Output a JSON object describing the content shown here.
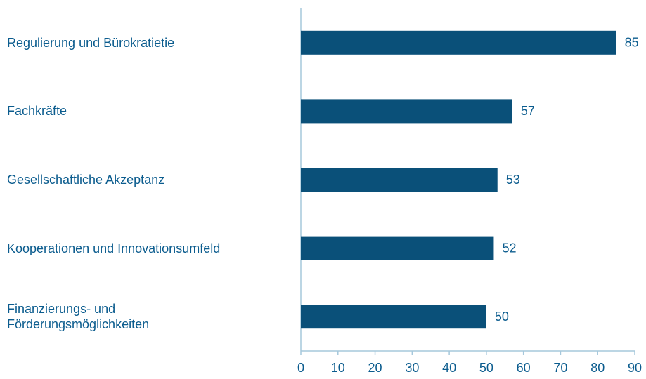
{
  "chart_data": {
    "type": "bar",
    "orientation": "horizontal",
    "categories": [
      "Regulierung und Bürokratietie",
      "Fachkräfte",
      "Gesellschaftliche Akzeptanz",
      "Kooperationen und Innovationsumfeld",
      "Finanzierungs- und Förderungsmöglichkeiten"
    ],
    "values": [
      85,
      57,
      53,
      52,
      50
    ],
    "color": "#0a5079",
    "xlim": [
      0,
      90
    ],
    "xticks": [
      0,
      10,
      20,
      30,
      40,
      50,
      60,
      70,
      80,
      90
    ],
    "grid": false
  }
}
